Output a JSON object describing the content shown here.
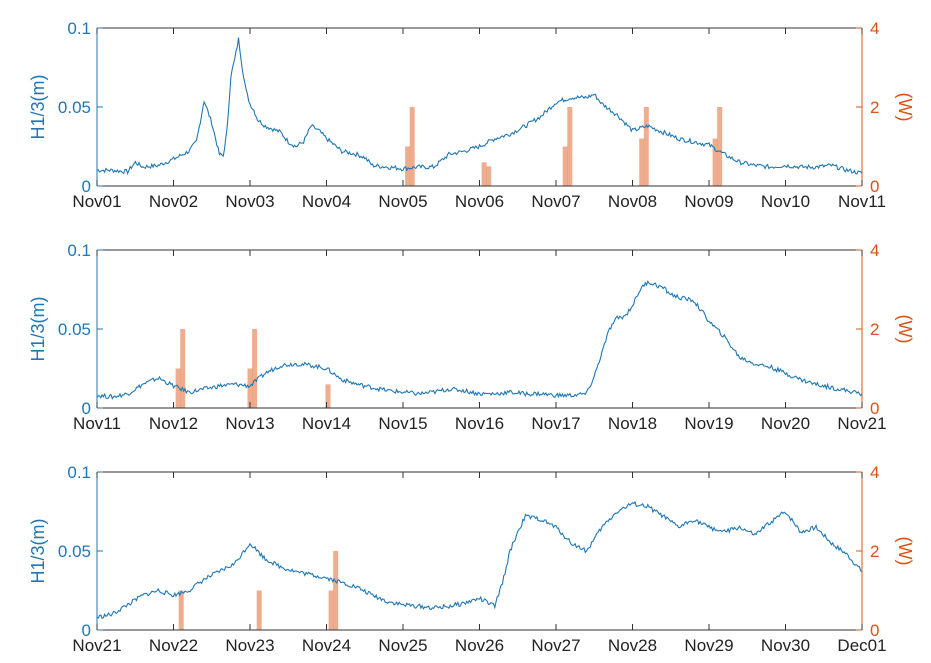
{
  "chart_data": [
    {
      "type": "line",
      "left_axis": {
        "label": "H1/3(m)",
        "ylim": [
          0,
          0.1
        ],
        "ticks": [
          0,
          0.05,
          0.1
        ],
        "tick_labels": [
          "0",
          "0.05",
          "0.1"
        ],
        "color": "#1f77b4"
      },
      "right_axis": {
        "label": "(W)",
        "ylim": [
          0,
          4
        ],
        "ticks": [
          0,
          2,
          4
        ],
        "tick_labels": [
          "0",
          "2",
          "4"
        ],
        "color": "#d95319"
      },
      "x_ticks": [
        "Nov01",
        "Nov02",
        "Nov03",
        "Nov04",
        "Nov05",
        "Nov06",
        "Nov07",
        "Nov08",
        "Nov09",
        "Nov10",
        "Nov11"
      ],
      "series": [
        {
          "axis": "left",
          "x": [
            0,
            0.2,
            0.4,
            0.5,
            0.6,
            0.8,
            1.0,
            1.2,
            1.3,
            1.4,
            1.5,
            1.6,
            1.65,
            1.7,
            1.75,
            1.8,
            1.85,
            1.9,
            1.95,
            2.0,
            2.05,
            2.1,
            2.15,
            2.2,
            2.3,
            2.4,
            2.5,
            2.6,
            2.7,
            2.8,
            2.9,
            3.0,
            3.2,
            3.4,
            3.5,
            3.6,
            3.8,
            4.0,
            4.2,
            4.4,
            4.6,
            4.8,
            5.0,
            5.2,
            5.4,
            5.6,
            5.8,
            6.0,
            6.2,
            6.4,
            6.5,
            6.6,
            6.8,
            7.0,
            7.2,
            7.4,
            7.6,
            7.8,
            8.0,
            8.2,
            8.4,
            8.6,
            8.8,
            9.0,
            9.2,
            9.4,
            9.6,
            9.8,
            10.0
          ],
          "y": [
            0.01,
            0.01,
            0.009,
            0.015,
            0.012,
            0.013,
            0.017,
            0.022,
            0.028,
            0.054,
            0.04,
            0.02,
            0.019,
            0.035,
            0.07,
            0.08,
            0.093,
            0.075,
            0.06,
            0.052,
            0.048,
            0.042,
            0.04,
            0.038,
            0.036,
            0.034,
            0.028,
            0.025,
            0.028,
            0.038,
            0.035,
            0.03,
            0.022,
            0.02,
            0.018,
            0.013,
            0.012,
            0.011,
            0.012,
            0.012,
            0.02,
            0.022,
            0.025,
            0.03,
            0.033,
            0.038,
            0.044,
            0.053,
            0.056,
            0.056,
            0.058,
            0.052,
            0.045,
            0.035,
            0.038,
            0.034,
            0.03,
            0.028,
            0.026,
            0.02,
            0.015,
            0.013,
            0.012,
            0.013,
            0.012,
            0.012,
            0.013,
            0.01,
            0.008
          ]
        },
        {
          "axis": "right",
          "type": "bar",
          "x": [
            4.06,
            4.12,
            5.06,
            5.12,
            6.12,
            6.18,
            7.12,
            7.18,
            8.08,
            8.14
          ],
          "y": [
            1.0,
            2.0,
            0.6,
            0.5,
            1.0,
            2.0,
            1.2,
            2.0,
            1.2,
            2.0
          ]
        }
      ]
    },
    {
      "type": "line",
      "left_axis": {
        "label": "H1/3(m)",
        "ylim": [
          0,
          0.1
        ],
        "ticks": [
          0,
          0.05,
          0.1
        ],
        "tick_labels": [
          "0",
          "0.05",
          "0.1"
        ],
        "color": "#1f77b4"
      },
      "right_axis": {
        "label": "(W)",
        "ylim": [
          0,
          4
        ],
        "ticks": [
          0,
          2,
          4
        ],
        "tick_labels": [
          "0",
          "2",
          "4"
        ],
        "color": "#d95319"
      },
      "x_ticks": [
        "Nov11",
        "Nov12",
        "Nov13",
        "Nov14",
        "Nov15",
        "Nov16",
        "Nov17",
        "Nov18",
        "Nov19",
        "Nov20",
        "Nov21"
      ],
      "series": [
        {
          "axis": "left",
          "x": [
            0,
            0.2,
            0.4,
            0.5,
            0.6,
            0.8,
            1.0,
            1.2,
            1.4,
            1.6,
            1.8,
            2.0,
            2.2,
            2.4,
            2.6,
            2.8,
            3.0,
            3.2,
            3.4,
            3.6,
            3.8,
            4.0,
            4.2,
            4.4,
            4.6,
            4.8,
            5.0,
            5.2,
            5.4,
            5.6,
            5.8,
            6.0,
            6.2,
            6.4,
            6.5,
            6.6,
            6.7,
            6.8,
            6.9,
            7.0,
            7.1,
            7.2,
            7.3,
            7.4,
            7.5,
            7.6,
            7.8,
            8.0,
            8.2,
            8.4,
            8.6,
            8.8,
            9.0,
            9.2,
            9.4,
            9.6,
            9.8,
            10.0
          ],
          "y": [
            0.008,
            0.007,
            0.009,
            0.012,
            0.015,
            0.019,
            0.014,
            0.01,
            0.012,
            0.014,
            0.015,
            0.014,
            0.022,
            0.027,
            0.028,
            0.027,
            0.025,
            0.018,
            0.015,
            0.013,
            0.011,
            0.01,
            0.009,
            0.01,
            0.012,
            0.011,
            0.009,
            0.009,
            0.01,
            0.009,
            0.009,
            0.008,
            0.008,
            0.009,
            0.02,
            0.035,
            0.05,
            0.057,
            0.058,
            0.065,
            0.075,
            0.08,
            0.078,
            0.076,
            0.072,
            0.07,
            0.068,
            0.055,
            0.045,
            0.032,
            0.028,
            0.026,
            0.022,
            0.018,
            0.015,
            0.013,
            0.011,
            0.009
          ]
        },
        {
          "axis": "right",
          "type": "bar",
          "x": [
            1.06,
            1.12,
            2.0,
            2.06,
            3.02
          ],
          "y": [
            1.0,
            2.0,
            1.0,
            2.0,
            0.6
          ]
        }
      ]
    },
    {
      "type": "line",
      "left_axis": {
        "label": "H1/3(m)",
        "ylim": [
          0,
          0.1
        ],
        "ticks": [
          0,
          0.05,
          0.1
        ],
        "tick_labels": [
          "0",
          "0.05",
          "0.1"
        ],
        "color": "#1f77b4"
      },
      "right_axis": {
        "label": "(W)",
        "ylim": [
          0,
          4
        ],
        "ticks": [
          0,
          2,
          4
        ],
        "tick_labels": [
          "0",
          "2",
          "4"
        ],
        "color": "#d95319"
      },
      "x_ticks": [
        "Nov21",
        "Nov22",
        "Nov23",
        "Nov24",
        "Nov25",
        "Nov26",
        "Nov27",
        "Nov28",
        "Nov29",
        "Nov30",
        "Dec01"
      ],
      "series": [
        {
          "axis": "left",
          "x": [
            0,
            0.2,
            0.4,
            0.6,
            0.8,
            1.0,
            1.2,
            1.4,
            1.6,
            1.8,
            2.0,
            2.2,
            2.4,
            2.6,
            2.8,
            3.0,
            3.2,
            3.4,
            3.6,
            3.8,
            4.0,
            4.2,
            4.4,
            4.6,
            4.8,
            5.0,
            5.2,
            5.3,
            5.4,
            5.5,
            5.6,
            5.8,
            6.0,
            6.2,
            6.4,
            6.6,
            6.8,
            7.0,
            7.2,
            7.4,
            7.6,
            7.8,
            8.0,
            8.2,
            8.4,
            8.6,
            8.8,
            9.0,
            9.2,
            9.4,
            9.6,
            9.8,
            10.0
          ],
          "y": [
            0.008,
            0.01,
            0.016,
            0.022,
            0.025,
            0.022,
            0.025,
            0.032,
            0.037,
            0.042,
            0.055,
            0.045,
            0.04,
            0.037,
            0.035,
            0.033,
            0.03,
            0.027,
            0.022,
            0.018,
            0.016,
            0.015,
            0.014,
            0.015,
            0.017,
            0.02,
            0.015,
            0.03,
            0.05,
            0.062,
            0.072,
            0.07,
            0.065,
            0.055,
            0.05,
            0.065,
            0.075,
            0.08,
            0.078,
            0.072,
            0.065,
            0.07,
            0.065,
            0.062,
            0.065,
            0.06,
            0.068,
            0.075,
            0.062,
            0.065,
            0.055,
            0.048,
            0.037
          ]
        },
        {
          "axis": "right",
          "type": "bar",
          "x": [
            1.1,
            2.12,
            3.06,
            3.12
          ],
          "y": [
            1.0,
            1.0,
            1.0,
            2.0
          ]
        }
      ]
    }
  ]
}
